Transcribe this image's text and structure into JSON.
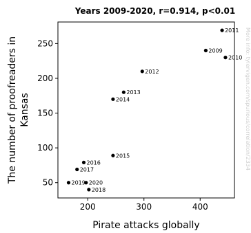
{
  "chart_data": {
    "type": "scatter",
    "title": "Years 2009-2020, r=0.914, p<0.01",
    "xlabel": "Pirate attacks globally",
    "ylabel_lines": [
      "The number of proofreaders in",
      "Kansas"
    ],
    "xlim": [
      147,
      461
    ],
    "ylim": [
      28,
      281
    ],
    "xticks": [
      200,
      300,
      400
    ],
    "yticks": [
      50,
      100,
      150,
      200,
      250
    ],
    "points": [
      {
        "label": "2009",
        "x": 410,
        "y": 240
      },
      {
        "label": "2010",
        "x": 445,
        "y": 230
      },
      {
        "label": "2011",
        "x": 439,
        "y": 269
      },
      {
        "label": "2012",
        "x": 297,
        "y": 210
      },
      {
        "label": "2013",
        "x": 264,
        "y": 180
      },
      {
        "label": "2014",
        "x": 245,
        "y": 170
      },
      {
        "label": "2015",
        "x": 245,
        "y": 89
      },
      {
        "label": "2016",
        "x": 193,
        "y": 79
      },
      {
        "label": "2017",
        "x": 181,
        "y": 69
      },
      {
        "label": "2018",
        "x": 202,
        "y": 40
      },
      {
        "label": "2019",
        "x": 166,
        "y": 50
      },
      {
        "label": "2020",
        "x": 197,
        "y": 50
      }
    ],
    "grid": false,
    "legend": "none"
  },
  "watermark": "More info: tylervigen.com/spurious/correlation/2334"
}
